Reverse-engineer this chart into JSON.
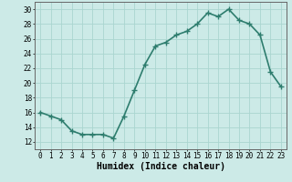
{
  "x": [
    0,
    1,
    2,
    3,
    4,
    5,
    6,
    7,
    8,
    9,
    10,
    11,
    12,
    13,
    14,
    15,
    16,
    17,
    18,
    19,
    20,
    21,
    22,
    23
  ],
  "y": [
    16,
    15.5,
    15,
    13.5,
    13,
    13,
    13,
    12.5,
    15.5,
    19,
    22.5,
    25,
    25.5,
    26.5,
    27,
    28,
    29.5,
    29,
    30,
    28.5,
    28,
    26.5,
    21.5,
    19.5
  ],
  "line_color": "#2e7d6e",
  "marker": "+",
  "marker_size": 4,
  "marker_lw": 1.0,
  "xlabel": "Humidex (Indice chaleur)",
  "ylabel": "",
  "xlim": [
    -0.5,
    23.5
  ],
  "ylim": [
    11,
    31
  ],
  "yticks": [
    12,
    14,
    16,
    18,
    20,
    22,
    24,
    26,
    28,
    30
  ],
  "xticks": [
    0,
    1,
    2,
    3,
    4,
    5,
    6,
    7,
    8,
    9,
    10,
    11,
    12,
    13,
    14,
    15,
    16,
    17,
    18,
    19,
    20,
    21,
    22,
    23
  ],
  "bg_color": "#cceae7",
  "grid_color": "#aad5d0",
  "line_width": 1.2,
  "xlabel_fontsize": 7,
  "tick_fontsize": 5.5
}
